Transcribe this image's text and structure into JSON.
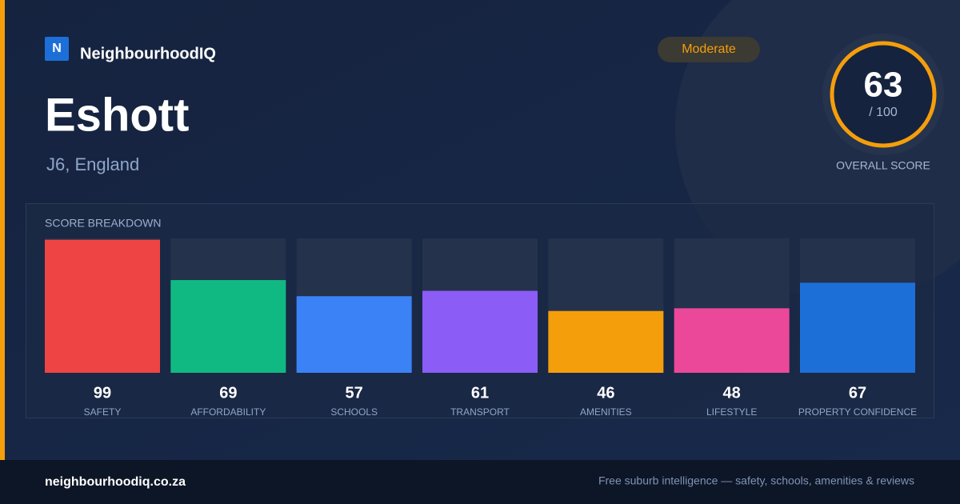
{
  "brand": {
    "logo": "N",
    "name": "NeighbourhoodIQ"
  },
  "place": {
    "name": "Eshott",
    "location": "J6, England"
  },
  "badge": "Moderate",
  "overall": {
    "score": 63,
    "scale": "/ 100",
    "label": "OVERALL SCORE"
  },
  "chart_data": {
    "type": "bar",
    "title": "SCORE BREAKDOWN",
    "categories": [
      "SAFETY",
      "AFFORDABILITY",
      "SCHOOLS",
      "TRANSPORT",
      "AMENITIES",
      "LIFESTYLE",
      "PROPERTY CONFIDENCE"
    ],
    "values": [
      99,
      69,
      57,
      61,
      46,
      48,
      67
    ],
    "colors": [
      "#ef4444",
      "#10b981",
      "#3b82f6",
      "#8b5cf6",
      "#f59e0b",
      "#ec4899",
      "#1d6fd8"
    ],
    "ylim": [
      0,
      100
    ]
  },
  "footer": {
    "site": "neighbourhoodiq.co.za",
    "tagline": "Free suburb intelligence — safety, schools, amenities & reviews"
  }
}
